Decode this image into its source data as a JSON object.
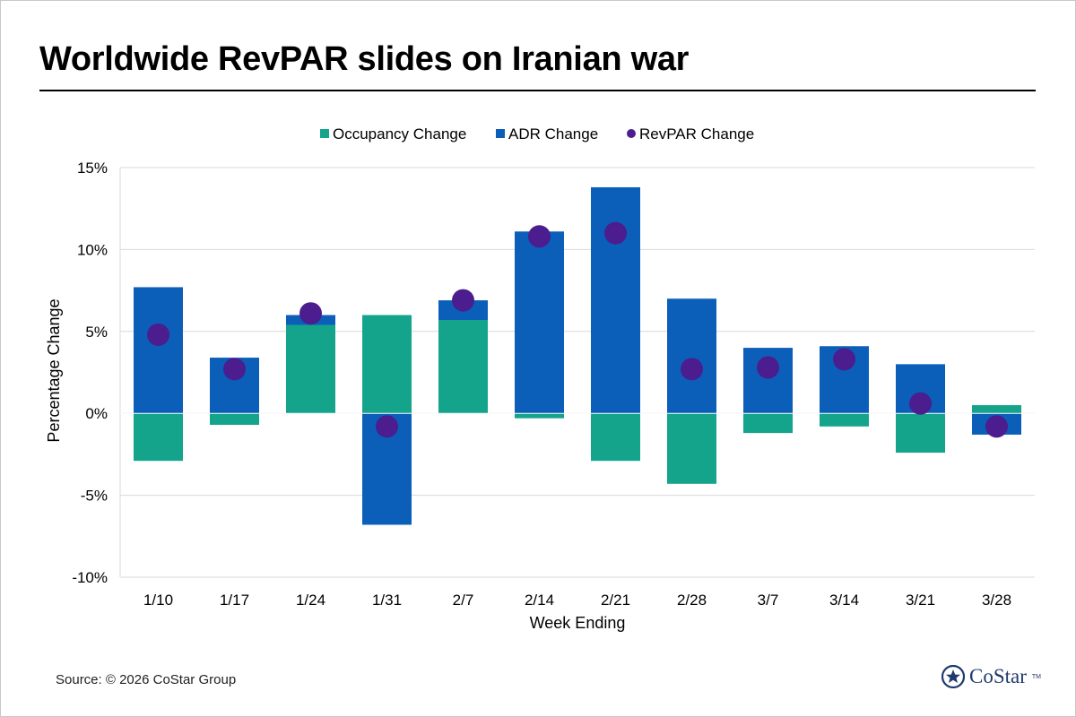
{
  "header": {
    "title": "Worldwide RevPAR slides on Iranian war"
  },
  "footer": {
    "source": "Source: © 2026 CoStar Group",
    "logo_text": "CoStar",
    "logo_tm": "TM"
  },
  "colors": {
    "occupancy": "#14a38b",
    "adr": "#0b5fb8",
    "revpar": "#4b1d8e",
    "grid": "#d9d9d9",
    "axis_text": "#000000",
    "logo": "#1f3a6e"
  },
  "chart_data": {
    "type": "bar",
    "stacked": true,
    "xlabel": "Week Ending",
    "ylabel": "Percentage Change",
    "ylim": [
      -10,
      15
    ],
    "yticks": [
      -10,
      -5,
      0,
      5,
      10,
      15
    ],
    "ytick_labels": [
      "-10%",
      "-5%",
      "0%",
      "5%",
      "10%",
      "15%"
    ],
    "grid": true,
    "legend_position": "top-center",
    "categories": [
      "1/10",
      "1/17",
      "1/24",
      "1/31",
      "2/7",
      "2/14",
      "2/21",
      "2/28",
      "3/7",
      "3/14",
      "3/21",
      "3/28"
    ],
    "series": [
      {
        "name": "Occupancy Change",
        "kind": "bar",
        "values": [
          -2.9,
          -0.7,
          5.4,
          6.0,
          5.7,
          -0.3,
          -2.9,
          -4.3,
          -1.2,
          -0.8,
          -2.4,
          0.5
        ]
      },
      {
        "name": "ADR Change",
        "kind": "bar",
        "values": [
          7.7,
          3.4,
          0.6,
          -6.8,
          1.2,
          11.1,
          13.8,
          7.0,
          4.0,
          4.1,
          3.0,
          -1.3
        ]
      },
      {
        "name": "RevPAR Change",
        "kind": "point",
        "values": [
          4.8,
          2.7,
          6.1,
          -0.8,
          6.9,
          10.8,
          11.0,
          2.7,
          2.8,
          3.3,
          0.6,
          -0.8
        ]
      }
    ]
  }
}
